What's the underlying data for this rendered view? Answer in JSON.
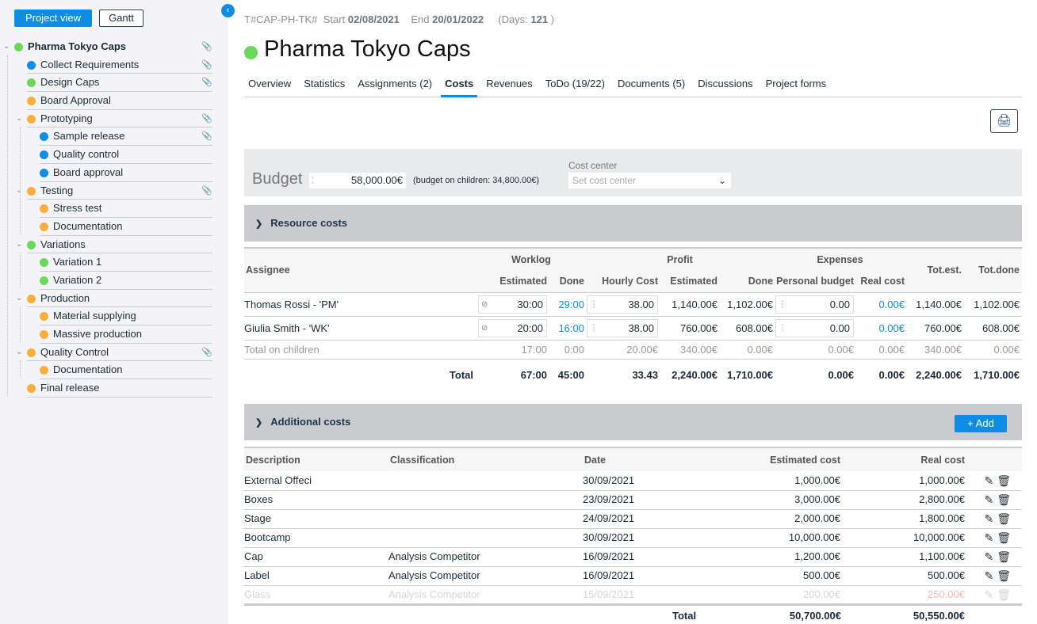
{
  "sidebar": {
    "project_view": "Project view",
    "gantt": "Gantt",
    "tree": [
      {
        "label": "Pharma Tokyo Caps",
        "level": 0,
        "color": "#6bd75b",
        "expand": true,
        "clip": "gray"
      },
      {
        "label": "Collect Requirements",
        "level": 1,
        "color": "#0e8de3",
        "clip": "gray"
      },
      {
        "label": "Design Caps",
        "level": 1,
        "color": "#6bd75b",
        "clip": "gray"
      },
      {
        "label": "Board Approval",
        "level": 1,
        "color": "#fbae3c"
      },
      {
        "label": "Prototyping",
        "level": 1,
        "color": "#fbae3c",
        "expand": true,
        "clip": "red"
      },
      {
        "label": "Sample release",
        "level": 2,
        "color": "#0e8de3",
        "clip": "red"
      },
      {
        "label": "Quality control",
        "level": 2,
        "color": "#0e8de3"
      },
      {
        "label": "Board approval",
        "level": 2,
        "color": "#0e8de3"
      },
      {
        "label": "Testing",
        "level": 1,
        "color": "#fbae3c",
        "expand": true,
        "clip": "red"
      },
      {
        "label": "Stress test",
        "level": 2,
        "color": "#fbae3c"
      },
      {
        "label": "Documentation",
        "level": 2,
        "color": "#fbae3c"
      },
      {
        "label": "Variations",
        "level": 1,
        "color": "#6bd75b",
        "expand": true
      },
      {
        "label": "Variation 1",
        "level": 2,
        "color": "#6bd75b"
      },
      {
        "label": "Variation 2",
        "level": 2,
        "color": "#6bd75b"
      },
      {
        "label": "Production",
        "level": 1,
        "color": "#fbae3c",
        "expand": true
      },
      {
        "label": "Material supplying",
        "level": 2,
        "color": "#fbae3c"
      },
      {
        "label": "Massive production",
        "level": 2,
        "color": "#fbae3c"
      },
      {
        "label": "Quality Control",
        "level": 1,
        "color": "#fbae3c",
        "expand": true,
        "clip": "gray"
      },
      {
        "label": "Documentation",
        "level": 2,
        "color": "#fbae3c"
      },
      {
        "label": "Final release",
        "level": 1,
        "color": "#fbae3c"
      }
    ]
  },
  "header": {
    "code": "T#CAP-PH-TK#",
    "start_label": "Start",
    "start": "02/08/2021",
    "end_label": "End",
    "end": "20/01/2022",
    "days_label": "(Days:",
    "days": "121",
    "days_close": ")",
    "title": "Pharma Tokyo Caps",
    "status_color": "#6bd75b"
  },
  "tabs": [
    "Overview",
    "Statistics",
    "Assignments (2)",
    "Costs",
    "Revenues",
    "ToDo (19/22)",
    "Documents (5)",
    "Discussions",
    "Project forms"
  ],
  "active_tab": "Costs",
  "budget": {
    "label": "Budget",
    "value": "58,000.00€",
    "children": "(budget on children: 34,800.00€)",
    "cost_center_label": "Cost center",
    "cost_center_placeholder": "Set cost center"
  },
  "resource": {
    "title": "Resource costs",
    "groups": {
      "worklog": "Worklog",
      "profit": "Profit",
      "expenses": "Expenses"
    },
    "cols": {
      "assignee": "Assignee",
      "estimated": "Estimated",
      "done": "Done",
      "hourly": "Hourly Cost",
      "p_est": "Estimated",
      "p_done": "Done",
      "personal": "Personal budget",
      "real": "Real cost",
      "tot_est": "Tot.est.",
      "tot_done": "Tot.done"
    },
    "rows": [
      {
        "assignee": "Thomas Rossi - 'PM'",
        "estimated": "30:00",
        "done": "29:00",
        "hourly": "38.00",
        "p_est": "1,140.00€",
        "p_done": "1,102.00€",
        "personal": "0.00",
        "real": "0.00€",
        "tot_est": "1,140.00€",
        "tot_done": "1,102.00€"
      },
      {
        "assignee": "Giulia Smith - 'WK'",
        "estimated": "20:00",
        "done": "16:00",
        "hourly": "38.00",
        "p_est": "760.00€",
        "p_done": "608.00€",
        "personal": "0.00",
        "real": "0.00€",
        "tot_est": "760.00€",
        "tot_done": "608.00€"
      }
    ],
    "children": {
      "label": "Total on children",
      "estimated": "17:00",
      "done": "0:00",
      "hourly": "20.00€",
      "p_est": "340.00€",
      "p_done": "0.00€",
      "personal": "0.00€",
      "real": "0.00€",
      "tot_est": "340.00€",
      "tot_done": "0.00€"
    },
    "total": {
      "label": "Total",
      "estimated": "67:00",
      "done": "45:00",
      "hourly": "33.43",
      "p_est": "2,240.00€",
      "p_done": "1,710.00€",
      "personal": "0.00€",
      "real": "0.00€",
      "tot_est": "2,240.00€",
      "tot_done": "1,710.00€"
    }
  },
  "additional": {
    "title": "Additional costs",
    "add": "Add",
    "cols": {
      "description": "Description",
      "classification": "Classification",
      "date": "Date",
      "estimated": "Estimated cost",
      "real": "Real cost"
    },
    "rows": [
      {
        "description": "External Offeci",
        "classification": "",
        "date": "30/09/2021",
        "estimated": "1,000.00€",
        "real": "1,000.00€"
      },
      {
        "description": "Boxes",
        "classification": "",
        "date": "23/09/2021",
        "estimated": "3,000.00€",
        "real": "2,800.00€"
      },
      {
        "description": "Stage",
        "classification": "",
        "date": "24/09/2021",
        "estimated": "2,000.00€",
        "real": "1,800.00€"
      },
      {
        "description": "Bootcamp",
        "classification": "",
        "date": "30/09/2021",
        "estimated": "10,000.00€",
        "real": "10,000.00€"
      },
      {
        "description": "Cap",
        "classification": "Analysis Competitor",
        "date": "16/09/2021",
        "estimated": "1,200.00€",
        "real": "1,100.00€"
      },
      {
        "description": "Label",
        "classification": "Analysis Competitor",
        "date": "16/09/2021",
        "estimated": "500.00€",
        "real": "500.00€"
      },
      {
        "description": "Glass",
        "classification": "Analysis Competitor",
        "date": "15/09/2021",
        "estimated": "200.00€",
        "real": "250.00€",
        "faded": true
      }
    ],
    "total": {
      "label": "Total",
      "estimated": "50,700.00€",
      "real": "50,550.00€"
    }
  }
}
